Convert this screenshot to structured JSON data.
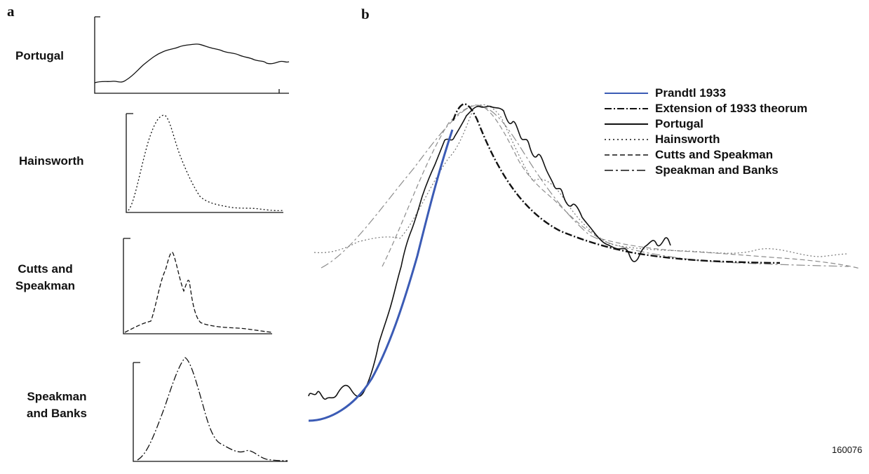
{
  "panels": {
    "a": "a",
    "b": "b"
  },
  "small_labels": {
    "portugal": [
      "Portugal"
    ],
    "hainsworth": [
      "Hainsworth"
    ],
    "cutts": [
      "Cutts and",
      "Speakman"
    ],
    "speakman": [
      "Speakman",
      "and Banks"
    ]
  },
  "legend": [
    {
      "label": "Prandtl 1933",
      "color": "#3b5bb5",
      "dash": ""
    },
    {
      "label": "Extension of 1933 theorum",
      "color": "#111111",
      "dash": "10,3,2,3"
    },
    {
      "label": "Portugal",
      "color": "#111111",
      "dash": ""
    },
    {
      "label": "Hainsworth",
      "color": "#111111",
      "dash": "2,4"
    },
    {
      "label": "Cutts and Speakman",
      "color": "#111111",
      "dash": "7,4"
    },
    {
      "label": "Speakman and Banks",
      "color": "#111111",
      "dash": "12,4,3,4"
    }
  ],
  "figure_code": "160076",
  "chart_data": [
    {
      "type": "line",
      "name": "Portugal",
      "x": [
        0,
        1,
        2,
        3,
        4,
        5,
        6,
        7,
        8,
        9,
        10
      ],
      "values": [
        0.05,
        0.05,
        0.35,
        0.75,
        1.0,
        0.9,
        0.75,
        0.55,
        0.45,
        0.4,
        0.35
      ]
    },
    {
      "type": "line",
      "name": "Hainsworth",
      "x": [
        0,
        1,
        2,
        3,
        4,
        5,
        6,
        7,
        8,
        9,
        10
      ],
      "values": [
        0.0,
        0.6,
        1.0,
        0.55,
        0.25,
        0.12,
        0.08,
        0.05,
        0.04,
        0.03,
        0.02
      ]
    },
    {
      "type": "line",
      "name": "Cutts and Speakman",
      "x": [
        0,
        1,
        2,
        3,
        4,
        5,
        6,
        7,
        8,
        9,
        10
      ],
      "values": [
        0.03,
        0.1,
        0.55,
        1.0,
        0.5,
        0.15,
        0.08,
        0.05,
        0.05,
        0.04,
        0.03
      ]
    },
    {
      "type": "line",
      "name": "Speakman and Banks",
      "x": [
        0,
        1,
        2,
        3,
        4,
        5,
        6,
        7,
        8,
        9,
        10
      ],
      "values": [
        0.0,
        0.1,
        0.5,
        1.0,
        0.75,
        0.3,
        0.12,
        0.08,
        0.06,
        0.04,
        0.02
      ]
    },
    {
      "type": "line",
      "series": [
        {
          "name": "Prandtl 1933",
          "x": [
            0,
            1,
            2,
            3,
            4
          ],
          "values": [
            0.05,
            0.15,
            0.35,
            0.65,
            1.0
          ]
        },
        {
          "name": "Extension of 1933 theorum",
          "x": [
            4,
            5,
            6,
            7,
            8,
            9,
            10
          ],
          "values": [
            1.0,
            0.6,
            0.35,
            0.28,
            0.25,
            0.24,
            0.24
          ]
        },
        {
          "name": "Portugal",
          "x": [
            0,
            1,
            2,
            3,
            4,
            5,
            6,
            7,
            8
          ],
          "values": [
            0.1,
            0.12,
            0.4,
            0.85,
            1.0,
            0.7,
            0.45,
            0.3,
            0.3
          ]
        },
        {
          "name": "Hainsworth",
          "x": [
            0,
            2,
            3,
            4,
            5,
            6,
            8,
            10,
            12
          ],
          "values": [
            0.3,
            0.35,
            0.6,
            1.0,
            0.6,
            0.35,
            0.28,
            0.26,
            0.25
          ]
        },
        {
          "name": "Cutts and Speakman",
          "x": [
            1,
            2,
            3,
            4,
            5,
            6,
            8,
            10,
            12
          ],
          "values": [
            0.25,
            0.5,
            0.8,
            1.0,
            0.65,
            0.35,
            0.28,
            0.24,
            0.2
          ]
        },
        {
          "name": "Speakman and Banks",
          "x": [
            0,
            2,
            3,
            4,
            5,
            6,
            8,
            10,
            12
          ],
          "values": [
            0.25,
            0.45,
            0.75,
            1.0,
            0.7,
            0.4,
            0.3,
            0.25,
            0.22
          ]
        }
      ]
    }
  ]
}
